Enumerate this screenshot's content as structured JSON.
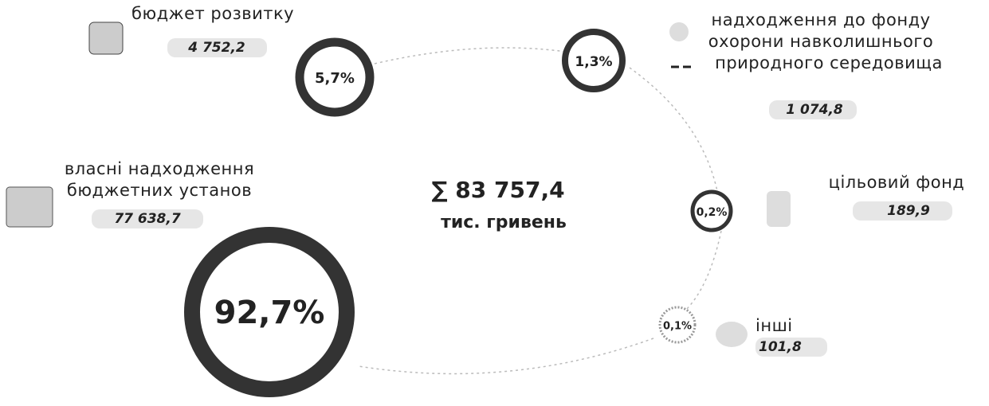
{
  "center": {
    "total": "∑ 83 757,4",
    "unit": "тис. гривень"
  },
  "items": [
    {
      "label": [
        "бюджет розвитку"
      ],
      "amount": "4 752,2",
      "share": "5,7%"
    },
    {
      "label": [
        "надходження до фонду",
        "охорони навколишнього",
        "природного середовища"
      ],
      "amount": "1 074,8",
      "share": "1,3%"
    },
    {
      "label": [
        "власні надходження",
        "бюджетних установ"
      ],
      "amount": "77 638,7",
      "share": "92,7%"
    },
    {
      "label": [
        "цільовий фонд"
      ],
      "amount": "189,9",
      "share": "0,2%"
    },
    {
      "label": [
        "інші"
      ],
      "amount": "101,8",
      "share": "0,1%"
    }
  ]
}
